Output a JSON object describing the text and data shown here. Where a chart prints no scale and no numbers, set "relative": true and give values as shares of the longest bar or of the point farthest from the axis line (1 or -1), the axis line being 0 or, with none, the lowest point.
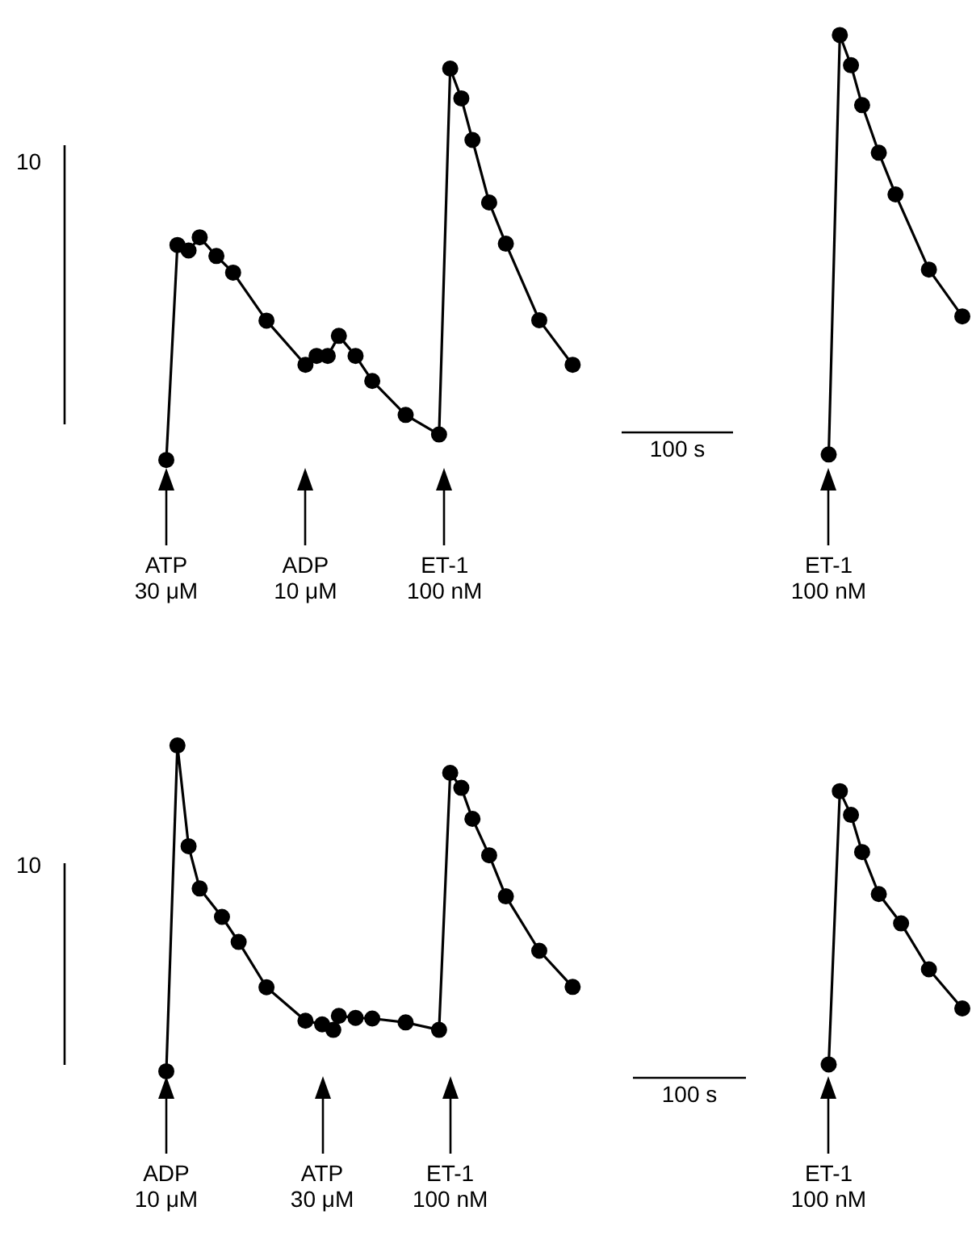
{
  "chart_data": [
    {
      "type": "line",
      "relative": true,
      "marker": "circle",
      "line_style": "solid",
      "categories": [
        null,
        null,
        null,
        null,
        null,
        null,
        null,
        null,
        null,
        null,
        null,
        null,
        null,
        null,
        null,
        null,
        null,
        null,
        null,
        null,
        null,
        null,
        null,
        null,
        null,
        null,
        null,
        null,
        null,
        null,
        null,
        null,
        null,
        null,
        null,
        null,
        null,
        null,
        null,
        null,
        null,
        null,
        null,
        null,
        null,
        null,
        null,
        null,
        null,
        null,
        null,
        null,
        null,
        null,
        null,
        null,
        null,
        null,
        null,
        null,
        null,
        null,
        null,
        null,
        null,
        null,
        null,
        null,
        null,
        null,
        null,
        null,
        null,
        null,
        null,
        null,
        null,
        null,
        null,
        null,
        null,
        null,
        null,
        null,
        null,
        null,
        null,
        null,
        null,
        null,
        null,
        null,
        null,
        null,
        null,
        null,
        null,
        null,
        null,
        null,
        null,
        null,
        null,
        null,
        null,
        null,
        null,
        null,
        null,
        null,
        null,
        null,
        null,
        null,
        null,
        null,
        null,
        null,
        null,
        null,
        null,
        null,
        null,
        null,
        null,
        null,
        null,
        null,
        null,
        null,
        null,
        null,
        null,
        null,
        null,
        null,
        null,
        null,
        null,
        null,
        null,
        null,
        null,
        null
      ],
      "series": [
        {
          "color": "#000000",
          "values": [
            0,
            null,
            0.506,
            null,
            0.493,
            null,
            0.524,
            null,
            null,
            0.48,
            null,
            null,
            0.441,
            null,
            null,
            null,
            null,
            null,
            0.328,
            null,
            null,
            null,
            null,
            null,
            null,
            0.224,
            null,
            0.245,
            null,
            0.245,
            null,
            0.292,
            null,
            null,
            0.245,
            null,
            null,
            0.186,
            null,
            null,
            null,
            null,
            null,
            0.106,
            null,
            null,
            null,
            null,
            null,
            0.06,
            null,
            0.921,
            null,
            0.851,
            null,
            0.753,
            null,
            null,
            0.606,
            null,
            null,
            0.509,
            null,
            null,
            null,
            null,
            null,
            0.329,
            null,
            null,
            null,
            null,
            null,
            0.224,
            null,
            null,
            null,
            null,
            null,
            null,
            null,
            null,
            null,
            null,
            null,
            null,
            null,
            null,
            null,
            null,
            null,
            null,
            null,
            null,
            null,
            null,
            null,
            null,
            null,
            null,
            null,
            null,
            null,
            null,
            null,
            null,
            null,
            null,
            null,
            null,
            null,
            null,
            null,
            null,
            null,
            null,
            null,
            null,
            null,
            null,
            null,
            null,
            null,
            null,
            null,
            null,
            null,
            null,
            null,
            null,
            null,
            null,
            null,
            null,
            null,
            null,
            null,
            null,
            null,
            null,
            null,
            null,
            null,
            null
          ]
        },
        {
          "color": "#000000",
          "values": [
            null,
            null,
            null,
            null,
            null,
            null,
            null,
            null,
            null,
            null,
            null,
            null,
            null,
            null,
            null,
            null,
            null,
            null,
            null,
            null,
            null,
            null,
            null,
            null,
            null,
            null,
            null,
            null,
            null,
            null,
            null,
            null,
            null,
            null,
            null,
            null,
            null,
            null,
            null,
            null,
            null,
            null,
            null,
            null,
            null,
            null,
            null,
            null,
            null,
            null,
            null,
            null,
            null,
            null,
            null,
            null,
            null,
            null,
            null,
            null,
            null,
            null,
            null,
            null,
            null,
            null,
            null,
            null,
            null,
            null,
            null,
            null,
            null,
            null,
            null,
            null,
            null,
            null,
            null,
            null,
            null,
            null,
            null,
            null,
            null,
            null,
            null,
            null,
            null,
            null,
            null,
            null,
            null,
            null,
            null,
            null,
            null,
            null,
            null,
            null,
            null,
            null,
            null,
            null,
            null,
            null,
            null,
            null,
            null,
            null,
            null,
            null,
            null,
            null,
            null,
            null,
            null,
            null,
            null,
            0.013,
            null,
            1,
            null,
            0.929,
            null,
            0.835,
            null,
            null,
            0.723,
            null,
            null,
            0.625,
            null,
            null,
            null,
            null,
            null,
            0.448,
            null,
            null,
            null,
            null,
            null,
            0.338
          ]
        }
      ],
      "annotations": [
        "ATP\n30 μM",
        "ADP\n10 μM",
        "ET-1\n100 nM",
        "ET-1\n100 nM",
        "10",
        "100 s"
      ]
    },
    {
      "type": "line",
      "relative": true,
      "marker": "circle",
      "line_style": "solid",
      "categories": [
        null,
        null,
        null,
        null,
        null,
        null,
        null,
        null,
        null,
        null,
        null,
        null,
        null,
        null,
        null,
        null,
        null,
        null,
        null,
        null,
        null,
        null,
        null,
        null,
        null,
        null,
        null,
        null,
        null,
        null,
        null,
        null,
        null,
        null,
        null,
        null,
        null,
        null,
        null,
        null,
        null,
        null,
        null,
        null,
        null,
        null,
        null,
        null,
        null,
        null,
        null,
        null,
        null,
        null,
        null,
        null,
        null,
        null,
        null,
        null,
        null,
        null,
        null,
        null,
        null,
        null,
        null,
        null,
        null,
        null,
        null,
        null,
        null,
        null,
        null,
        null,
        null,
        null,
        null,
        null,
        null,
        null,
        null,
        null,
        null,
        null,
        null,
        null,
        null,
        null,
        null,
        null,
        null,
        null,
        null,
        null,
        null,
        null,
        null,
        null,
        null,
        null,
        null,
        null,
        null,
        null,
        null,
        null,
        null,
        null,
        null,
        null,
        null,
        null,
        null,
        null,
        null,
        null,
        null,
        null,
        null,
        null,
        null,
        null,
        null,
        null,
        null,
        null,
        null,
        null,
        null,
        null,
        null,
        null,
        null,
        null,
        null,
        null,
        null,
        null,
        null,
        null,
        null,
        null
      ],
      "series": [
        {
          "color": "#000000",
          "values": [
            0,
            null,
            1,
            null,
            0.691,
            null,
            0.561,
            null,
            null,
            null,
            0.474,
            null,
            null,
            0.397,
            null,
            null,
            null,
            null,
            0.258,
            null,
            null,
            null,
            null,
            null,
            null,
            0.155,
            null,
            null,
            0.144,
            null,
            0.127,
            0.17,
            null,
            null,
            0.164,
            null,
            null,
            0.162,
            null,
            null,
            null,
            null,
            null,
            0.15,
            null,
            null,
            null,
            null,
            null,
            0.127,
            null,
            0.916,
            null,
            0.87,
            null,
            0.775,
            null,
            null,
            0.663,
            null,
            null,
            0.537,
            null,
            null,
            null,
            null,
            null,
            0.37,
            null,
            null,
            null,
            null,
            null,
            0.259,
            null,
            null,
            null,
            null,
            null,
            null,
            null,
            null,
            null,
            null,
            null,
            null,
            null,
            null,
            null,
            null,
            null,
            null,
            null,
            null,
            null,
            null,
            null,
            null,
            null,
            null,
            null,
            null,
            null,
            null,
            null,
            null,
            null,
            null,
            null,
            null,
            null,
            null,
            null,
            null,
            null,
            null,
            null,
            null,
            null,
            null,
            null,
            null,
            null,
            null,
            null,
            null,
            null,
            null,
            null,
            null,
            null,
            null,
            null,
            null,
            null,
            null,
            null,
            null,
            null,
            null,
            null,
            null,
            null,
            null
          ]
        },
        {
          "color": "#000000",
          "values": [
            null,
            null,
            null,
            null,
            null,
            null,
            null,
            null,
            null,
            null,
            null,
            null,
            null,
            null,
            null,
            null,
            null,
            null,
            null,
            null,
            null,
            null,
            null,
            null,
            null,
            null,
            null,
            null,
            null,
            null,
            null,
            null,
            null,
            null,
            null,
            null,
            null,
            null,
            null,
            null,
            null,
            null,
            null,
            null,
            null,
            null,
            null,
            null,
            null,
            null,
            null,
            null,
            null,
            null,
            null,
            null,
            null,
            null,
            null,
            null,
            null,
            null,
            null,
            null,
            null,
            null,
            null,
            null,
            null,
            null,
            null,
            null,
            null,
            null,
            null,
            null,
            null,
            null,
            null,
            null,
            null,
            null,
            null,
            null,
            null,
            null,
            null,
            null,
            null,
            null,
            null,
            null,
            null,
            null,
            null,
            null,
            null,
            null,
            null,
            null,
            null,
            null,
            null,
            null,
            null,
            null,
            null,
            null,
            null,
            null,
            null,
            null,
            null,
            null,
            null,
            null,
            null,
            null,
            null,
            0.021,
            null,
            0.86,
            null,
            0.787,
            null,
            0.673,
            null,
            null,
            0.544,
            null,
            null,
            null,
            0.454,
            null,
            null,
            null,
            null,
            0.313,
            null,
            null,
            null,
            null,
            null,
            0.193
          ]
        }
      ],
      "annotations": [
        "ADP\n10 μM",
        "ATP\n30 μM",
        "ET-1\n100 nM",
        "ET-1\n100 nM",
        "10",
        "100 s"
      ]
    }
  ]
}
